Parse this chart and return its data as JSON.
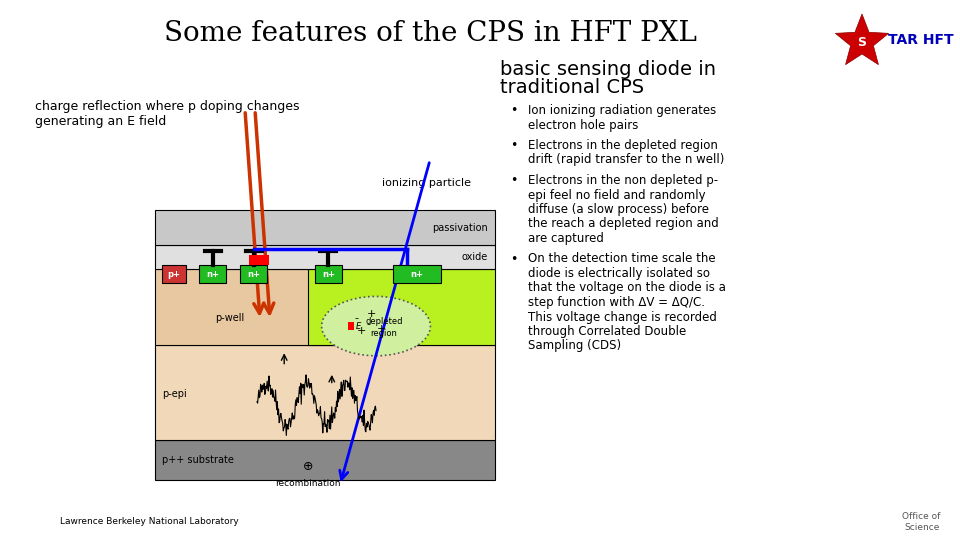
{
  "title": "Some features of the CPS in HFT PXL",
  "title_fontsize": 20,
  "bg_color": "#ffffff",
  "left_label1": "charge reflection where p doping changes",
  "left_label2": "generating an E field",
  "right_heading1": "basic sensing diode in",
  "right_heading2": "traditional CPS",
  "bullet_points": [
    [
      "Ion ionizing radiation generates",
      "electron hole pairs"
    ],
    [
      "Electrons in the depleted region",
      "drift (rapid transfer to the n well)"
    ],
    [
      "Electrons in the non depleted p-",
      "epi feel no field and randomly",
      "diffuse (a slow process) before",
      "the reach a depleted region and",
      "are captured"
    ],
    [
      "On the detection time scale the",
      "diode is electrically isolated so",
      "that the voltage on the diode is a",
      "step function with ΔV = ΔQ/C.",
      "This voltage change is recorded",
      "through Correlated Double",
      "Sampling (CDS)"
    ]
  ],
  "passivation_color": "#c8c8c8",
  "oxide_color": "#e0e0e0",
  "pwell_color": "#e8c8a0",
  "nwell_color": "#b8f020",
  "pepi_color": "#f0d8b8",
  "substrate_color": "#888888",
  "nplus_color": "#22bb22",
  "pplus_color": "#cc3333",
  "depleted_color": "#d0f0a0",
  "star_outer_color": "#cc0000",
  "star_text_color": "#0000bb"
}
